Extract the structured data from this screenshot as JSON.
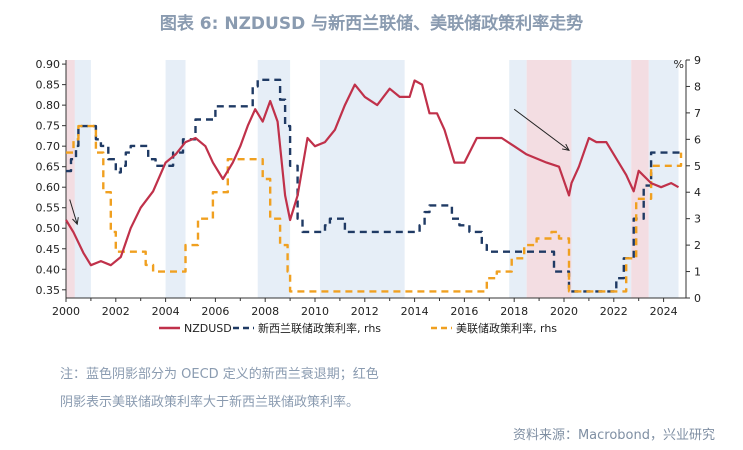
{
  "title": "图表 6: NZDUSD 与新西兰联储、美联储政策利率走势",
  "note_line1": "注：蓝色阴影部分为 OECD 定义的新西兰衰退期；红色",
  "note_line2": "阴影表示美联储政策利率大于新西兰联储政策利率。",
  "source": "资料来源：Macrobond，兴业研究",
  "chart_data": {
    "type": "line",
    "xlim": [
      2000.0,
      2024.9
    ],
    "ylim_left": [
      0.33,
      0.91
    ],
    "ylim_right": [
      0,
      9
    ],
    "x_ticks": [
      "2000",
      "2002",
      "2004",
      "2006",
      "2008",
      "2010",
      "2012",
      "2014",
      "2016",
      "2018",
      "2020",
      "2022",
      "2024"
    ],
    "x_tick_values": [
      2000,
      2002,
      2004,
      2006,
      2008,
      2010,
      2012,
      2014,
      2016,
      2018,
      2020,
      2022,
      2024
    ],
    "y_left_ticks": [
      "0.35",
      "0.40",
      "0.45",
      "0.50",
      "0.55",
      "0.60",
      "0.65",
      "0.70",
      "0.75",
      "0.80",
      "0.85",
      "0.90"
    ],
    "y_left_tick_values": [
      0.35,
      0.4,
      0.45,
      0.5,
      0.55,
      0.6,
      0.65,
      0.7,
      0.75,
      0.8,
      0.85,
      0.9
    ],
    "y_right_ticks": [
      "0",
      "1",
      "2",
      "3",
      "4",
      "5",
      "6",
      "7",
      "8",
      "9"
    ],
    "y_right_tick_values": [
      0,
      1,
      2,
      3,
      4,
      5,
      6,
      7,
      8,
      9
    ],
    "right_unit": "%",
    "recession_shading": [
      [
        2000.0,
        2001.0
      ],
      [
        2004.0,
        2004.8
      ],
      [
        2007.7,
        2009.0
      ],
      [
        2010.2,
        2013.6
      ],
      [
        2017.8,
        2018.5
      ],
      [
        2020.3,
        2022.7
      ],
      [
        2023.4,
        2024.6
      ]
    ],
    "us_above_nz_shading": [
      [
        2000.0,
        2000.35
      ],
      [
        2018.5,
        2020.3
      ],
      [
        2022.7,
        2023.4
      ]
    ],
    "colors": {
      "nzdusd": "#c0314a",
      "nz_rate": "#1f3a64",
      "us_rate": "#f0a020",
      "recession": "#e6eef7",
      "us_above": "#f3dde2"
    },
    "annotations": [
      {
        "from": [
          2000.15,
          0.57
        ],
        "to": [
          2000.45,
          0.51
        ]
      },
      {
        "from": [
          2018.0,
          0.79
        ],
        "to": [
          2020.2,
          0.69
        ]
      }
    ],
    "series": [
      {
        "name": "NZDUSD",
        "axis": "left",
        "style": "solid",
        "x": [
          2000.0,
          2000.3,
          2000.7,
          2001.0,
          2001.4,
          2001.8,
          2002.2,
          2002.6,
          2003.0,
          2003.5,
          2004.0,
          2004.4,
          2004.8,
          2005.2,
          2005.6,
          2005.9,
          2006.3,
          2006.7,
          2007.0,
          2007.3,
          2007.6,
          2007.9,
          2008.2,
          2008.5,
          2008.8,
          2009.0,
          2009.3,
          2009.7,
          2010.0,
          2010.4,
          2010.8,
          2011.2,
          2011.6,
          2012.0,
          2012.5,
          2013.0,
          2013.4,
          2013.8,
          2014.0,
          2014.3,
          2014.6,
          2014.9,
          2015.2,
          2015.6,
          2016.0,
          2016.5,
          2017.0,
          2017.5,
          2018.0,
          2018.5,
          2018.9,
          2019.3,
          2019.8,
          2020.2,
          2020.3,
          2020.6,
          2021.0,
          2021.3,
          2021.7,
          2022.0,
          2022.5,
          2022.8,
          2023.0,
          2023.5,
          2023.9,
          2024.3,
          2024.6
        ],
        "y": [
          0.52,
          0.49,
          0.44,
          0.41,
          0.42,
          0.41,
          0.43,
          0.5,
          0.55,
          0.59,
          0.66,
          0.68,
          0.71,
          0.72,
          0.7,
          0.66,
          0.62,
          0.66,
          0.7,
          0.75,
          0.79,
          0.76,
          0.81,
          0.76,
          0.58,
          0.52,
          0.58,
          0.72,
          0.7,
          0.71,
          0.74,
          0.8,
          0.85,
          0.82,
          0.8,
          0.84,
          0.82,
          0.82,
          0.86,
          0.85,
          0.78,
          0.78,
          0.74,
          0.66,
          0.66,
          0.72,
          0.72,
          0.72,
          0.7,
          0.68,
          0.67,
          0.66,
          0.65,
          0.58,
          0.61,
          0.65,
          0.72,
          0.71,
          0.71,
          0.68,
          0.63,
          0.59,
          0.64,
          0.61,
          0.6,
          0.61,
          0.6
        ]
      },
      {
        "name": "新西兰联储政策利率, rhs",
        "axis": "right",
        "style": "dash",
        "x": [
          2000.0,
          2000.2,
          2000.4,
          2000.5,
          2001.0,
          2001.2,
          2001.4,
          2001.7,
          2002.0,
          2002.2,
          2002.4,
          2002.6,
          2003.0,
          2003.3,
          2003.6,
          2004.0,
          2004.3,
          2004.7,
          2005.2,
          2006.0,
          2007.0,
          2007.5,
          2007.7,
          2008.3,
          2008.6,
          2008.8,
          2009.0,
          2009.3,
          2009.5,
          2010.2,
          2010.4,
          2010.6,
          2011.1,
          2011.2,
          2014.0,
          2014.2,
          2014.4,
          2014.6,
          2015.3,
          2015.5,
          2015.8,
          2016.2,
          2016.7,
          2016.9,
          2019.3,
          2019.6,
          2020.2,
          2021.8,
          2022.1,
          2022.4,
          2022.8,
          2023.2,
          2023.5,
          2024.7
        ],
        "y": [
          4.8,
          5.25,
          5.75,
          6.5,
          6.5,
          6.0,
          5.75,
          5.25,
          4.75,
          5.0,
          5.5,
          5.75,
          5.75,
          5.25,
          5.0,
          5.0,
          5.5,
          6.0,
          6.75,
          7.25,
          7.25,
          8.0,
          8.25,
          8.25,
          7.5,
          6.5,
          5.0,
          3.0,
          2.5,
          2.5,
          2.75,
          3.0,
          3.0,
          2.5,
          2.5,
          2.75,
          3.25,
          3.5,
          3.5,
          3.0,
          2.75,
          2.5,
          2.0,
          1.75,
          1.75,
          1.0,
          0.25,
          0.25,
          0.75,
          1.5,
          3.0,
          4.25,
          5.5,
          5.5
        ]
      },
      {
        "name": "美联储政策利率, rhs",
        "axis": "right",
        "style": "dash",
        "x": [
          2000.0,
          2000.3,
          2000.5,
          2001.0,
          2001.2,
          2001.5,
          2001.8,
          2002.0,
          2002.9,
          2003.2,
          2003.5,
          2004.4,
          2004.8,
          2005.3,
          2005.9,
          2006.5,
          2007.6,
          2007.9,
          2008.2,
          2008.6,
          2008.9,
          2009.0,
          2015.9,
          2016.9,
          2017.3,
          2017.9,
          2018.4,
          2018.9,
          2019.5,
          2019.8,
          2020.2,
          2022.2,
          2022.5,
          2022.9,
          2023.5,
          2024.7
        ],
        "y": [
          5.5,
          6.0,
          6.5,
          6.5,
          5.5,
          4.0,
          2.5,
          1.75,
          1.75,
          1.25,
          1.0,
          1.0,
          2.0,
          3.0,
          4.0,
          5.25,
          5.25,
          4.5,
          3.0,
          2.0,
          1.0,
          0.25,
          0.25,
          0.75,
          1.0,
          1.5,
          2.0,
          2.25,
          2.5,
          2.25,
          0.25,
          0.25,
          1.5,
          3.75,
          5.0,
          5.5
        ]
      }
    ]
  }
}
